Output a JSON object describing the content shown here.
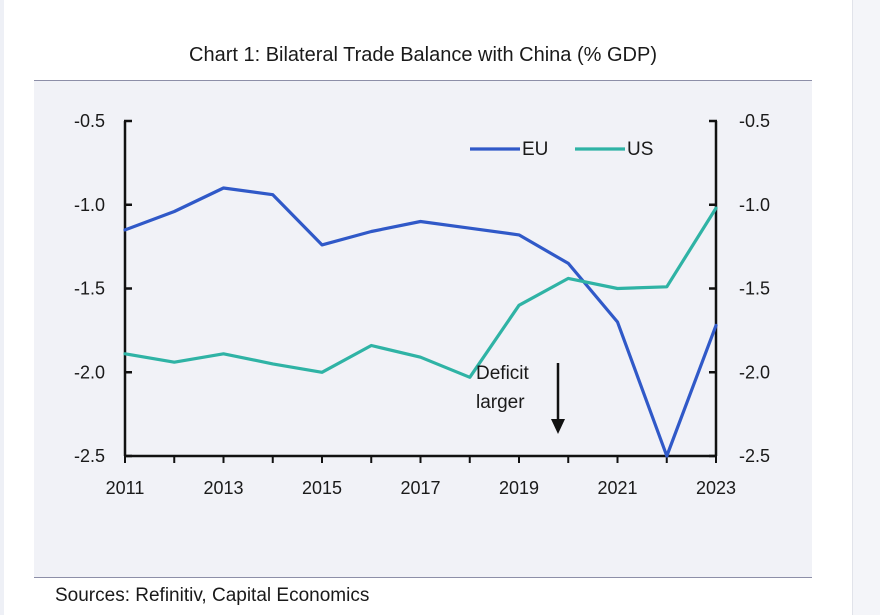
{
  "title": "Chart 1: Bilateral Trade Balance with China (% GDP)",
  "source": "Sources: Refinitiv, Capital Economics",
  "annotation": {
    "line1": "Deficit",
    "line2": "larger"
  },
  "colors": {
    "eu": "#3059c8",
    "us": "#2fb3a5",
    "axis": "#111111",
    "panel": "#f1f2f7"
  },
  "chart_data": {
    "type": "line",
    "x": [
      2011,
      2012,
      2013,
      2014,
      2015,
      2016,
      2017,
      2018,
      2019,
      2020,
      2021,
      2022,
      2023
    ],
    "series": [
      {
        "name": "EU",
        "color": "#3059c8",
        "values": [
          -1.15,
          -1.04,
          -0.9,
          -0.94,
          -1.24,
          -1.16,
          -1.1,
          -1.14,
          -1.18,
          -1.35,
          -1.7,
          -2.5,
          -1.72
        ]
      },
      {
        "name": "US",
        "color": "#2fb3a5",
        "values": [
          -1.89,
          -1.94,
          -1.89,
          -1.95,
          -2.0,
          -1.84,
          -1.91,
          -2.03,
          -1.6,
          -1.44,
          -1.5,
          -1.49,
          -1.02
        ]
      }
    ],
    "xlim": [
      2011,
      2023
    ],
    "ylim": [
      -2.5,
      -0.5
    ],
    "xticks": [
      2011,
      2013,
      2015,
      2017,
      2019,
      2021,
      2023
    ],
    "xtick_labels": [
      "2011",
      "2013",
      "2015",
      "2017",
      "2019",
      "2021",
      "2023"
    ],
    "yticks": [
      -0.5,
      -1.0,
      -1.5,
      -2.0,
      -2.5
    ],
    "ytick_labels": [
      "-0.5",
      "-1.0",
      "-1.5",
      "-2.0",
      "-2.5"
    ],
    "dual_y_axis": true,
    "legend": "top-right",
    "grid": false
  }
}
